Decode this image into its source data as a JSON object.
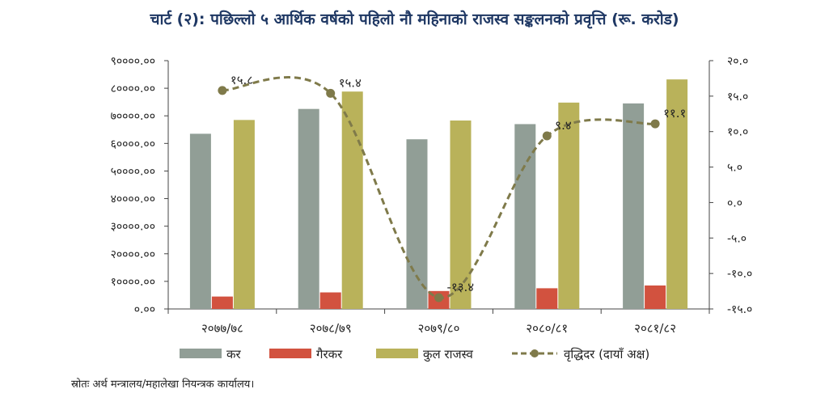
{
  "title": "चार्ट (२): पछिल्लो ५ आर्थिक वर्षको पहिलो नौ महिनाको राजस्व सङ्कलनको प्रवृत्ति (रू. करोड)",
  "source": "स्रोतः अर्थ मन्त्रालय/महालेखा नियन्त्रक कार्यालय।",
  "chart_data": {
    "type": "bar",
    "categories": [
      "२०७७/७८",
      "२०७८/७९",
      "२०७९/८०",
      "२०८०/८१",
      "२०८१/८२"
    ],
    "series": [
      {
        "name": "कर",
        "kind": "bar",
        "color": "#919e96",
        "values": [
          63500,
          72500,
          61500,
          67000,
          74500
        ]
      },
      {
        "name": "गैरकर",
        "kind": "bar",
        "color": "#d2523f",
        "values": [
          4500,
          6000,
          6500,
          7500,
          8500
        ]
      },
      {
        "name": "कुल राजस्व",
        "kind": "bar",
        "color": "#b9b25a",
        "values": [
          68500,
          78800,
          68300,
          74800,
          83200
        ]
      },
      {
        "name": "वृद्धिदर (दायाँ अक्ष)",
        "kind": "line",
        "axis": "right",
        "color": "#7f7a4a",
        "values": [
          15.8,
          15.4,
          -13.4,
          9.4,
          11.1
        ],
        "labels": [
          "१५.८",
          "१५.४",
          "-१३.४",
          "९.४",
          "११.१"
        ]
      }
    ],
    "y_left": {
      "ylim": [
        0,
        90000
      ],
      "ticks": [
        0,
        10000,
        20000,
        30000,
        40000,
        50000,
        60000,
        70000,
        80000,
        90000
      ],
      "tick_labels": [
        "०.००",
        "१००००.००",
        "२००००.००",
        "३००००.००",
        "४००००.००",
        "५००००.००",
        "६००००.००",
        "७००००.००",
        "८००००.००",
        "९००००.००"
      ]
    },
    "y_right": {
      "ylim": [
        -15,
        20
      ],
      "ticks": [
        -15,
        -10,
        -5,
        0,
        5,
        10,
        15,
        20
      ],
      "tick_labels": [
        "-१५.०",
        "-१०.०",
        "-५.०",
        "०.०",
        "५.०",
        "१०.०",
        "१५.०",
        "२०.०"
      ]
    },
    "grid": false,
    "legend_position": "bottom"
  }
}
